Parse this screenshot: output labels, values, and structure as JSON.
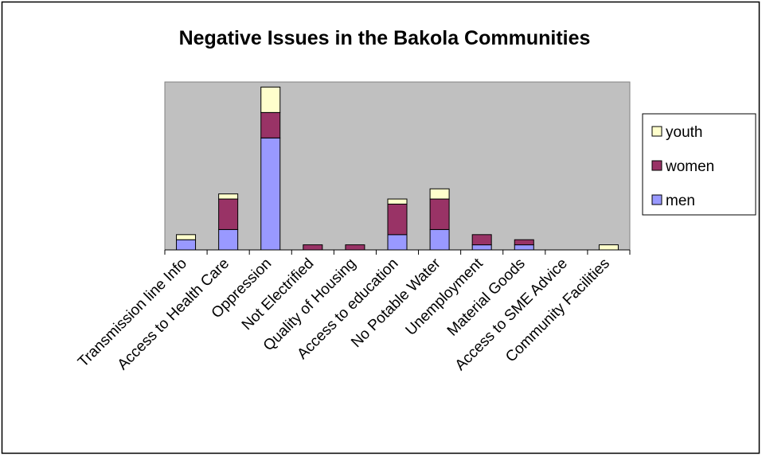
{
  "chart_data": {
    "type": "bar",
    "stacked": true,
    "title": "Negative Issues in the Bakola Communities",
    "xlabel": "",
    "ylabel": "",
    "categories": [
      "Transmission line Info",
      "Access to Health Care",
      "Oppression",
      "Not Electrified",
      "Quality of Housing",
      "Access to education",
      "No Potable Water",
      "Unemployment",
      "Material Goods",
      "Access to SME Advice",
      "Community Facilities"
    ],
    "series": [
      {
        "name": "men",
        "color": "#9999FF",
        "values": [
          2,
          4,
          22,
          0,
          0,
          3,
          4,
          1,
          1,
          0,
          0
        ]
      },
      {
        "name": "women",
        "color": "#993366",
        "values": [
          0,
          6,
          5,
          1,
          1,
          6,
          6,
          2,
          1,
          0,
          0
        ]
      },
      {
        "name": "youth",
        "color": "#FFFFCC",
        "values": [
          1,
          1,
          5,
          0,
          0,
          1,
          2,
          0,
          0,
          0,
          1
        ]
      }
    ],
    "ylim": [
      0,
      33
    ],
    "grid": false,
    "y_axis_visible": false,
    "plot_background": "#C0C0C0",
    "legend": {
      "placement": "right",
      "order": [
        "youth",
        "women",
        "men"
      ]
    }
  }
}
